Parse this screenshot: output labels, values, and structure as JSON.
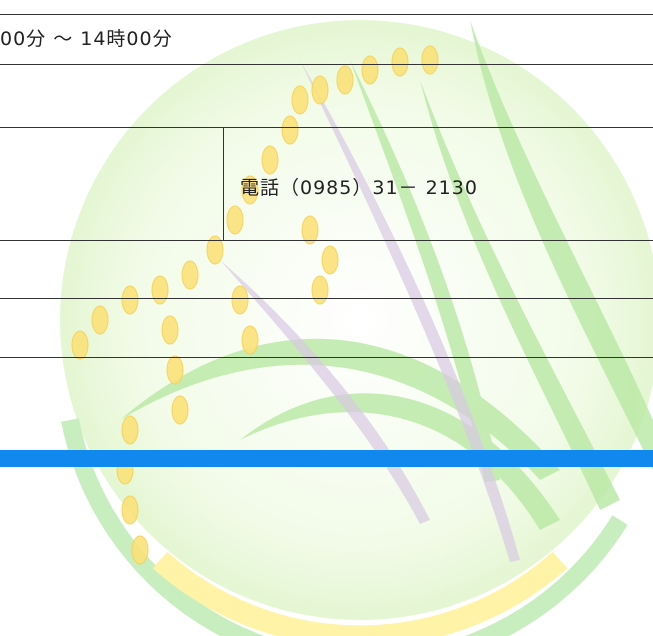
{
  "hours": {
    "text": "00分 〜 14時00分"
  },
  "contact": {
    "phone": "電話（0985）31－ 2130"
  }
}
